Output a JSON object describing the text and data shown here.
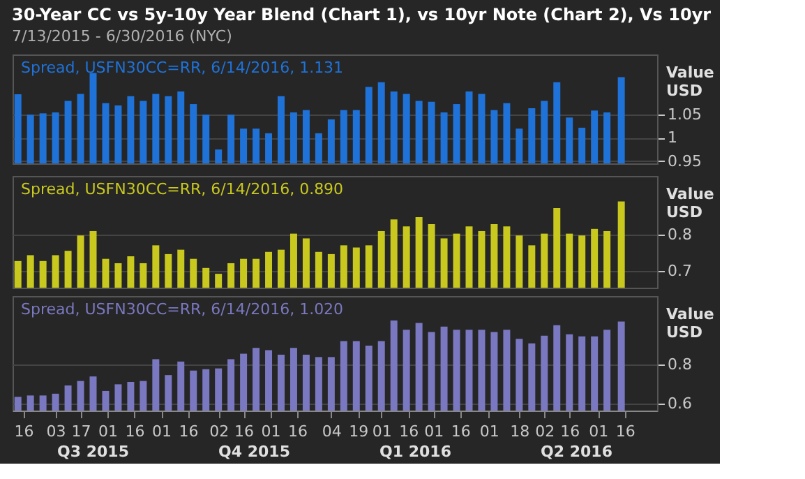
{
  "chart_data": [
    {
      "type": "bar",
      "title": "30-Year CC vs 5y-10y Year Blend (Chart 1), vs 10yr Note (Chart 2), Vs 10yr",
      "subtitle": "7/13/2015 - 6/30/2016 (NYC)",
      "ylabel": "Value USD",
      "x": [
        "2015-07-13",
        "2015-07-20",
        "2015-07-27",
        "2015-08-03",
        "2015-08-10",
        "2015-08-17",
        "2015-08-24",
        "2015-08-31",
        "2015-09-07",
        "2015-09-14",
        "2015-09-21",
        "2015-09-28",
        "2015-10-05",
        "2015-10-12",
        "2015-10-19",
        "2015-10-26",
        "2015-11-02",
        "2015-11-09",
        "2015-11-16",
        "2015-11-23",
        "2015-11-30",
        "2015-12-07",
        "2015-12-14",
        "2015-12-21",
        "2015-12-28",
        "2016-01-04",
        "2016-01-11",
        "2016-01-18",
        "2016-01-25",
        "2016-02-01",
        "2016-02-08",
        "2016-02-15",
        "2016-02-22",
        "2016-02-29",
        "2016-03-07",
        "2016-03-14",
        "2016-03-21",
        "2016-03-28",
        "2016-04-04",
        "2016-04-11",
        "2016-04-18",
        "2016-04-25",
        "2016-05-02",
        "2016-05-09",
        "2016-05-16",
        "2016-05-23",
        "2016-05-30",
        "2016-06-06",
        "2016-06-14"
      ],
      "series": [
        {
          "name": "Spread, USFN30CC=RR, 6/14/2016, 1.131",
          "color": "#1f72d8",
          "values": [
            1.094,
            1.05,
            1.053,
            1.055,
            1.08,
            1.095,
            1.14,
            1.075,
            1.07,
            1.09,
            1.08,
            1.095,
            1.09,
            1.1,
            1.073,
            1.05,
            0.975,
            1.05,
            1.02,
            1.02,
            1.01,
            1.09,
            1.055,
            1.06,
            1.01,
            1.04,
            1.06,
            1.06,
            1.11,
            1.12,
            1.1,
            1.095,
            1.08,
            1.078,
            1.055,
            1.073,
            1.1,
            1.095,
            1.06,
            1.075,
            1.02,
            1.064,
            1.08,
            1.12,
            1.044,
            1.022,
            1.059,
            1.055,
            1.131
          ]
        }
      ],
      "xlim": [
        "2015-07-10",
        "2016-07-04"
      ],
      "ylim": [
        0.945,
        1.18
      ],
      "yticks": [
        0.95,
        1,
        1.05
      ],
      "grid": "y",
      "tick_labels": "y"
    },
    {
      "type": "bar",
      "ylabel": "Value USD",
      "x": [
        "2015-07-13",
        "2015-07-20",
        "2015-07-27",
        "2015-08-03",
        "2015-08-10",
        "2015-08-17",
        "2015-08-24",
        "2015-08-31",
        "2015-09-07",
        "2015-09-14",
        "2015-09-21",
        "2015-09-28",
        "2015-10-05",
        "2015-10-12",
        "2015-10-19",
        "2015-10-26",
        "2015-11-02",
        "2015-11-09",
        "2015-11-16",
        "2015-11-23",
        "2015-11-30",
        "2015-12-07",
        "2015-12-14",
        "2015-12-21",
        "2015-12-28",
        "2016-01-04",
        "2016-01-11",
        "2016-01-18",
        "2016-01-25",
        "2016-02-01",
        "2016-02-08",
        "2016-02-15",
        "2016-02-22",
        "2016-02-29",
        "2016-03-07",
        "2016-03-14",
        "2016-03-21",
        "2016-03-28",
        "2016-04-04",
        "2016-04-11",
        "2016-04-18",
        "2016-04-25",
        "2016-05-02",
        "2016-05-09",
        "2016-05-16",
        "2016-05-23",
        "2016-05-30",
        "2016-06-06",
        "2016-06-14"
      ],
      "series": [
        {
          "name": "Spread, USFN30CC=RR, 6/14/2016, 0.890",
          "color": "#c8c81e",
          "values": [
            0.727,
            0.743,
            0.727,
            0.743,
            0.755,
            0.797,
            0.809,
            0.733,
            0.721,
            0.74,
            0.721,
            0.77,
            0.746,
            0.758,
            0.733,
            0.708,
            0.692,
            0.721,
            0.733,
            0.733,
            0.752,
            0.758,
            0.802,
            0.789,
            0.752,
            0.746,
            0.77,
            0.764,
            0.77,
            0.809,
            0.841,
            0.822,
            0.847,
            0.828,
            0.789,
            0.802,
            0.822,
            0.809,
            0.828,
            0.822,
            0.797,
            0.77,
            0.802,
            0.872,
            0.802,
            0.797,
            0.815,
            0.809,
            0.89
          ]
        }
      ],
      "xlim": [
        "2015-07-10",
        "2016-07-04"
      ],
      "ylim": [
        0.654,
        0.96
      ],
      "yticks": [
        0.7,
        0.8
      ],
      "grid": "y",
      "tick_labels": "y"
    },
    {
      "type": "bar",
      "ylabel": "Value USD",
      "x": [
        "2015-07-13",
        "2015-07-20",
        "2015-07-27",
        "2015-08-03",
        "2015-08-10",
        "2015-08-17",
        "2015-08-24",
        "2015-08-31",
        "2015-09-07",
        "2015-09-14",
        "2015-09-21",
        "2015-09-28",
        "2015-10-05",
        "2015-10-12",
        "2015-10-19",
        "2015-10-26",
        "2015-11-02",
        "2015-11-09",
        "2015-11-16",
        "2015-11-23",
        "2015-11-30",
        "2015-12-07",
        "2015-12-14",
        "2015-12-21",
        "2015-12-28",
        "2016-01-04",
        "2016-01-11",
        "2016-01-18",
        "2016-01-25",
        "2016-02-01",
        "2016-02-08",
        "2016-02-15",
        "2016-02-22",
        "2016-02-29",
        "2016-03-07",
        "2016-03-14",
        "2016-03-21",
        "2016-03-28",
        "2016-04-04",
        "2016-04-11",
        "2016-04-18",
        "2016-04-25",
        "2016-05-02",
        "2016-05-09",
        "2016-05-16",
        "2016-05-23",
        "2016-05-30",
        "2016-06-06",
        "2016-06-14"
      ],
      "series": [
        {
          "name": "Spread, USFN30CC=RR, 6/14/2016, 1.020",
          "color": "#7a78c0",
          "values": [
            0.636,
            0.643,
            0.643,
            0.652,
            0.694,
            0.717,
            0.74,
            0.666,
            0.7,
            0.712,
            0.717,
            0.828,
            0.747,
            0.816,
            0.77,
            0.777,
            0.781,
            0.828,
            0.856,
            0.886,
            0.874,
            0.851,
            0.886,
            0.851,
            0.839,
            0.839,
            0.92,
            0.92,
            0.897,
            0.92,
            1.025,
            0.978,
            1.013,
            0.967,
            0.994,
            0.978,
            0.978,
            0.978,
            0.967,
            0.978,
            0.932,
            0.909,
            0.948,
            1.001,
            0.955,
            0.944,
            0.944,
            0.978,
            1.02
          ]
        }
      ],
      "xlim": [
        "2015-07-10",
        "2016-07-04"
      ],
      "ylim": [
        0.566,
        1.15
      ],
      "yticks": [
        0.6,
        0.8
      ],
      "grid": "y",
      "xticks": [
        {
          "value": "2015-07-16",
          "label": "16"
        },
        {
          "value": "2015-08-03",
          "label": "03"
        },
        {
          "value": "2015-08-17",
          "label": "17"
        },
        {
          "value": "2015-09-01",
          "label": "01"
        },
        {
          "value": "2015-09-16",
          "label": "16"
        },
        {
          "value": "2015-10-01",
          "label": "01"
        },
        {
          "value": "2015-10-16",
          "label": "16"
        },
        {
          "value": "2015-11-02",
          "label": "02"
        },
        {
          "value": "2015-11-16",
          "label": "16"
        },
        {
          "value": "2015-12-01",
          "label": "01"
        },
        {
          "value": "2015-12-16",
          "label": "16"
        },
        {
          "value": "2016-01-04",
          "label": "04"
        },
        {
          "value": "2016-01-19",
          "label": "19"
        },
        {
          "value": "2016-02-01",
          "label": "01"
        },
        {
          "value": "2016-02-16",
          "label": "16"
        },
        {
          "value": "2016-03-01",
          "label": "01"
        },
        {
          "value": "2016-03-16",
          "label": "16"
        },
        {
          "value": "2016-04-01",
          "label": "01"
        },
        {
          "value": "2016-04-18",
          "label": "18"
        },
        {
          "value": "2016-05-02",
          "label": "02"
        },
        {
          "value": "2016-05-16",
          "label": "16"
        },
        {
          "value": "2016-06-01",
          "label": "01"
        },
        {
          "value": "2016-06-16",
          "label": "16"
        }
      ],
      "annotations": [
        "Q3 2015",
        "Q4 2015",
        "Q1 2016",
        "Q2 2016"
      ]
    }
  ]
}
